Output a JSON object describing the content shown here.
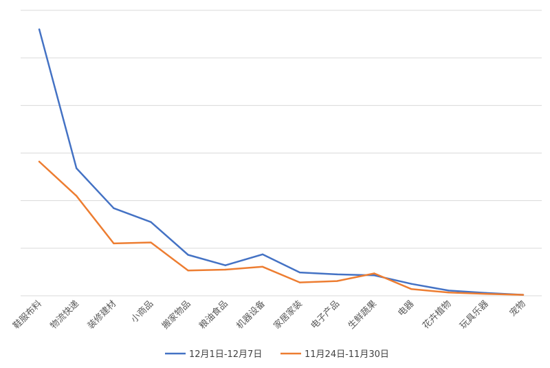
{
  "chart_data": {
    "type": "line",
    "categories": [
      "鞋服布料",
      "物流快递",
      "装修建材",
      "小商品",
      "搬家物品",
      "粮油食品",
      "机器设备",
      "家居家装",
      "电子产品",
      "生鲜蔬果",
      "电器",
      "花卉植物",
      "玩具乐器",
      "宠物"
    ],
    "series": [
      {
        "name": "12月1日-12月7日",
        "color": "#4472c4",
        "values": [
          5.6,
          2.68,
          1.84,
          1.55,
          0.86,
          0.64,
          0.87,
          0.49,
          0.45,
          0.43,
          0.25,
          0.11,
          0.06,
          0.02
        ]
      },
      {
        "name": "11月24日-11月30日",
        "color": "#ed7d31",
        "values": [
          2.82,
          2.1,
          1.1,
          1.12,
          0.53,
          0.55,
          0.61,
          0.28,
          0.31,
          0.47,
          0.14,
          0.07,
          0.04,
          0.02
        ]
      }
    ],
    "ylim": [
      0,
      6
    ],
    "grid": true,
    "legend": "bottom",
    "title": "",
    "xlabel": "",
    "ylabel": ""
  }
}
